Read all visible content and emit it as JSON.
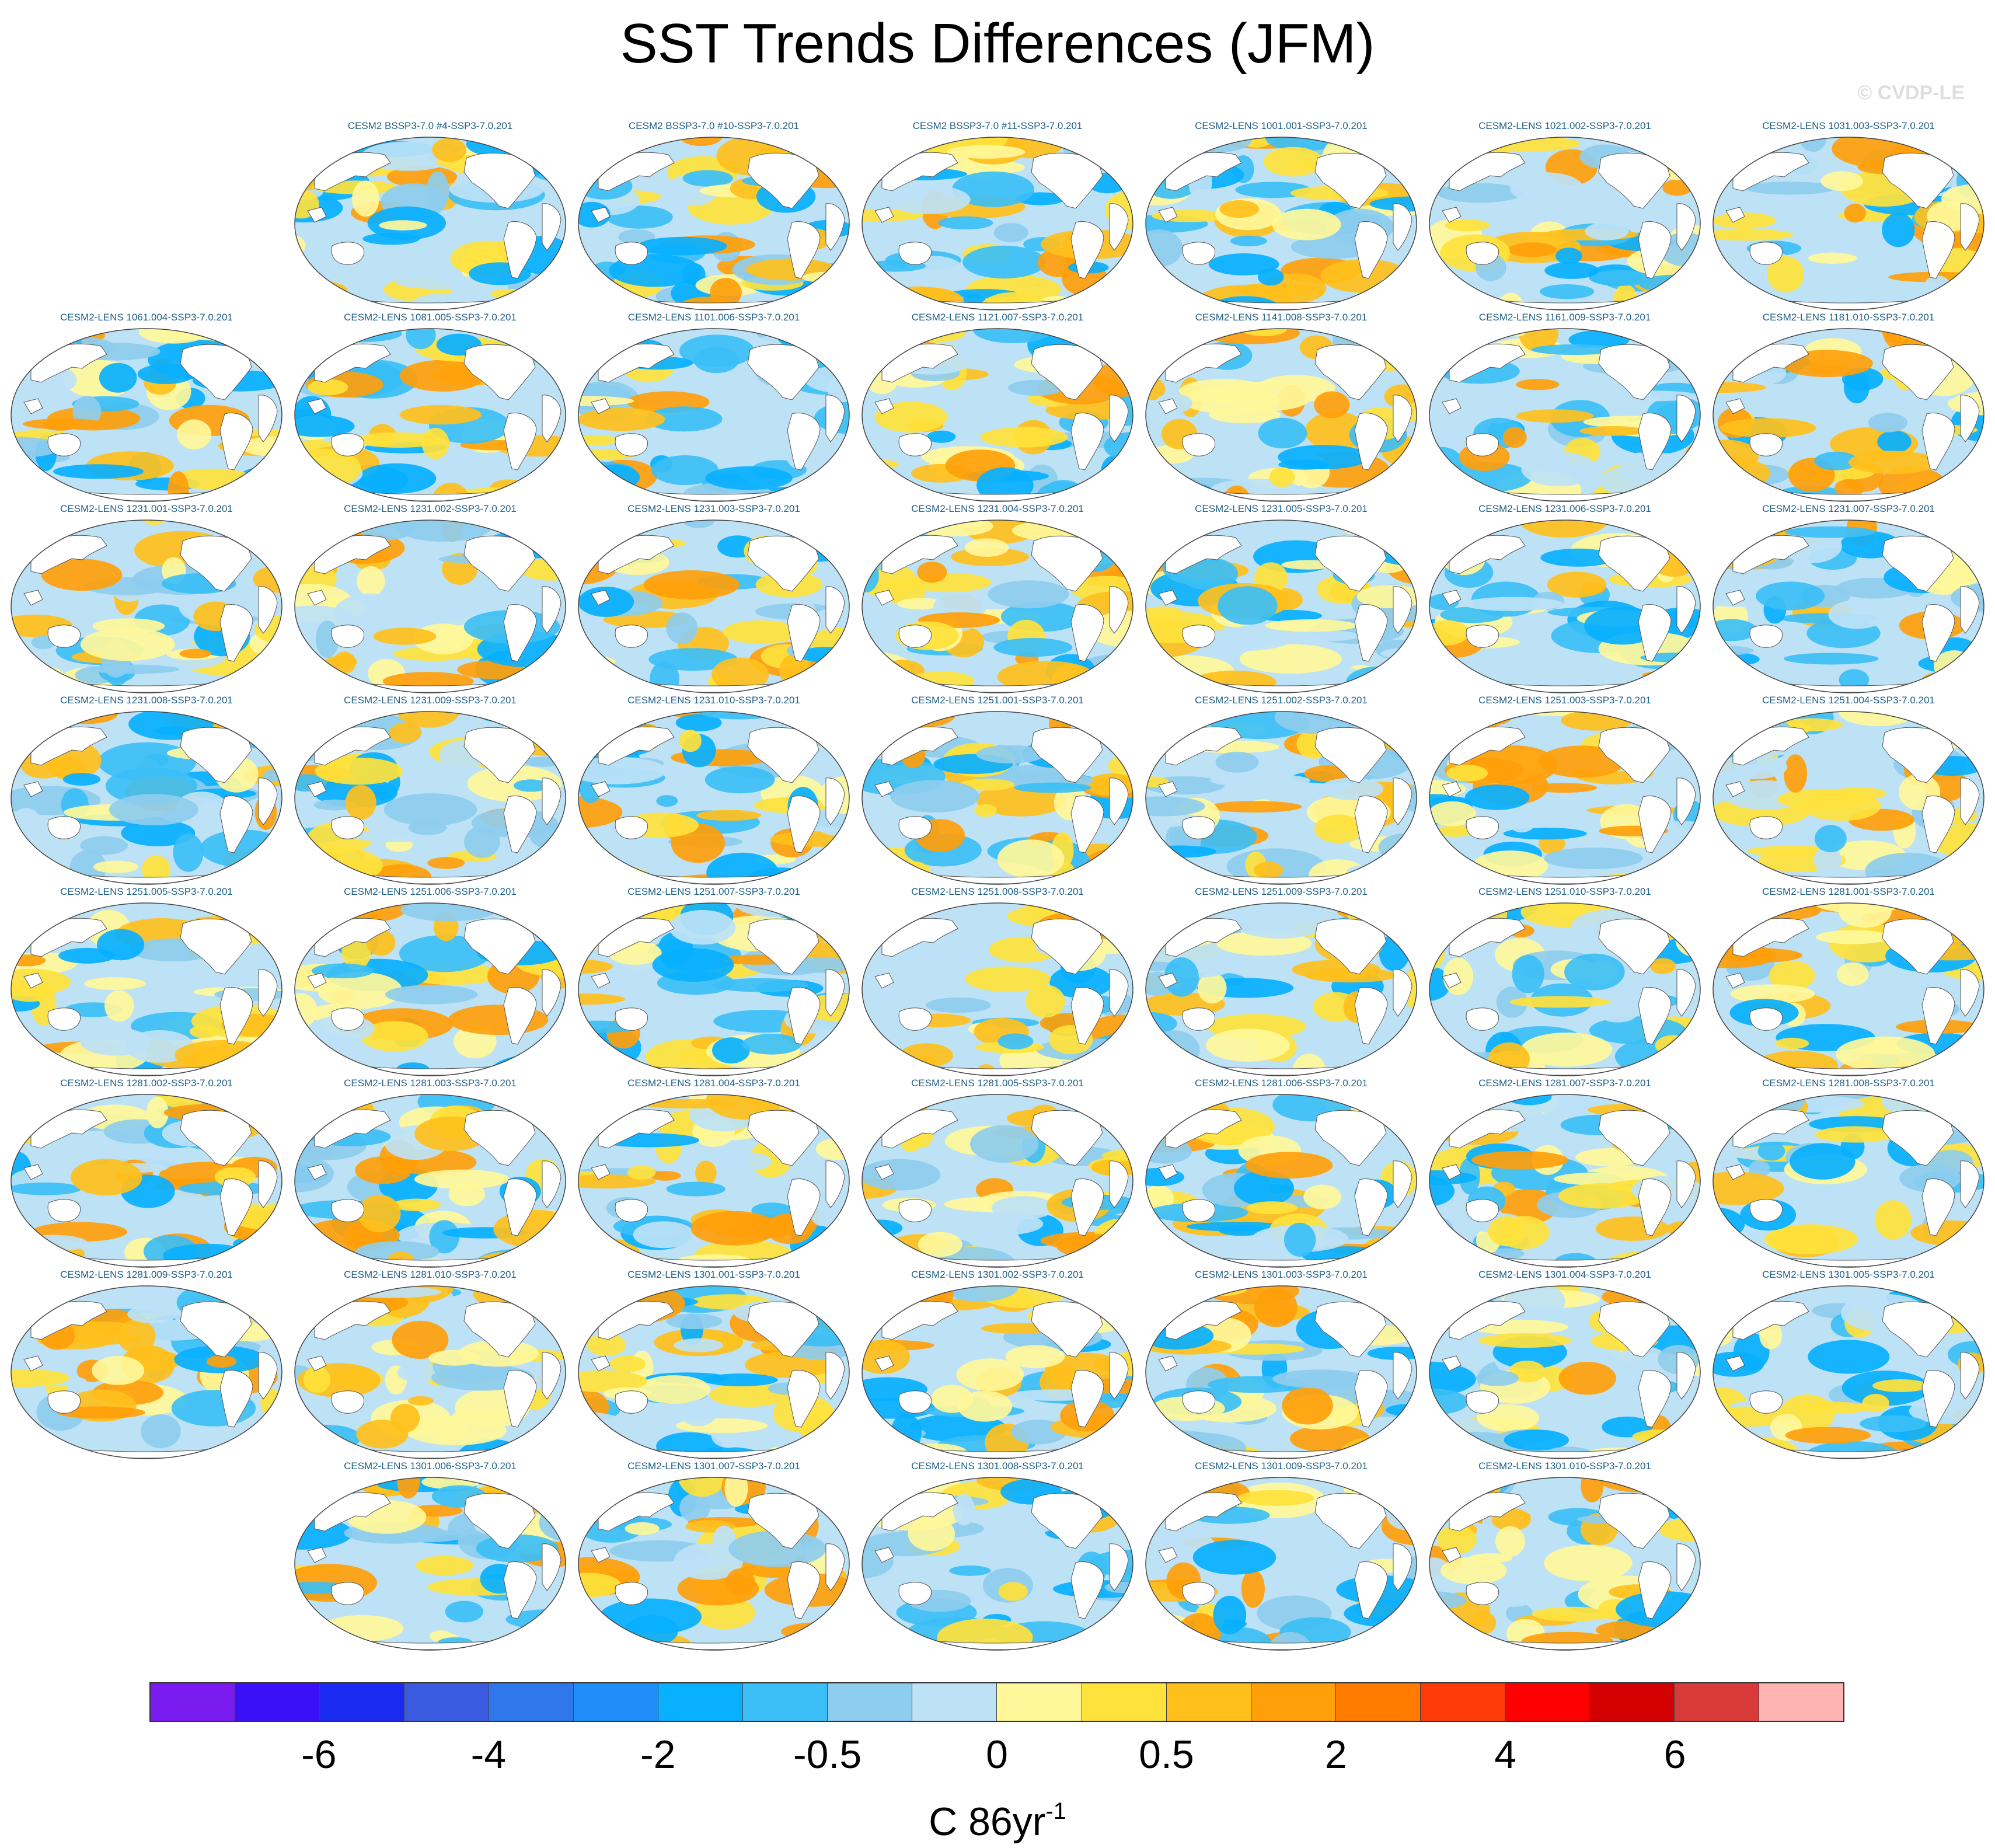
{
  "title": "SST Trends Differences (JFM)",
  "watermark": "© CVDP-LE",
  "panels": [
    {
      "label": "CESM2 BSSP3-7.0 #4-SSP3-7.0.201"
    },
    {
      "label": "CESM2 BSSP3-7.0 #10-SSP3-7.0.201"
    },
    {
      "label": "CESM2 BSSP3-7.0 #11-SSP3-7.0.201"
    },
    {
      "label": "CESM2-LENS 1001.001-SSP3-7.0.201"
    },
    {
      "label": "CESM2-LENS 1021.002-SSP3-7.0.201"
    },
    {
      "label": "CESM2-LENS 1031.003-SSP3-7.0.201"
    },
    {
      "label": "CESM2-LENS 1061.004-SSP3-7.0.201"
    },
    {
      "label": "CESM2-LENS 1081.005-SSP3-7.0.201"
    },
    {
      "label": "CESM2-LENS 1101.006-SSP3-7.0.201"
    },
    {
      "label": "CESM2-LENS 1121.007-SSP3-7.0.201"
    },
    {
      "label": "CESM2-LENS 1141.008-SSP3-7.0.201"
    },
    {
      "label": "CESM2-LENS 1161.009-SSP3-7.0.201"
    },
    {
      "label": "CESM2-LENS 1181.010-SSP3-7.0.201"
    },
    {
      "label": "CESM2-LENS 1231.001-SSP3-7.0.201"
    },
    {
      "label": "CESM2-LENS 1231.002-SSP3-7.0.201"
    },
    {
      "label": "CESM2-LENS 1231.003-SSP3-7.0.201"
    },
    {
      "label": "CESM2-LENS 1231.004-SSP3-7.0.201"
    },
    {
      "label": "CESM2-LENS 1231.005-SSP3-7.0.201"
    },
    {
      "label": "CESM2-LENS 1231.006-SSP3-7.0.201"
    },
    {
      "label": "CESM2-LENS 1231.007-SSP3-7.0.201"
    },
    {
      "label": "CESM2-LENS 1231.008-SSP3-7.0.201"
    },
    {
      "label": "CESM2-LENS 1231.009-SSP3-7.0.201"
    },
    {
      "label": "CESM2-LENS 1231.010-SSP3-7.0.201"
    },
    {
      "label": "CESM2-LENS 1251.001-SSP3-7.0.201"
    },
    {
      "label": "CESM2-LENS 1251.002-SSP3-7.0.201"
    },
    {
      "label": "CESM2-LENS 1251.003-SSP3-7.0.201"
    },
    {
      "label": "CESM2-LENS 1251.004-SSP3-7.0.201"
    },
    {
      "label": "CESM2-LENS 1251.005-SSP3-7.0.201"
    },
    {
      "label": "CESM2-LENS 1251.006-SSP3-7.0.201"
    },
    {
      "label": "CESM2-LENS 1251.007-SSP3-7.0.201"
    },
    {
      "label": "CESM2-LENS 1251.008-SSP3-7.0.201"
    },
    {
      "label": "CESM2-LENS 1251.009-SSP3-7.0.201"
    },
    {
      "label": "CESM2-LENS 1251.010-SSP3-7.0.201"
    },
    {
      "label": "CESM2-LENS 1281.001-SSP3-7.0.201"
    },
    {
      "label": "CESM2-LENS 1281.002-SSP3-7.0.201"
    },
    {
      "label": "CESM2-LENS 1281.003-SSP3-7.0.201"
    },
    {
      "label": "CESM2-LENS 1281.004-SSP3-7.0.201"
    },
    {
      "label": "CESM2-LENS 1281.005-SSP3-7.0.201"
    },
    {
      "label": "CESM2-LENS 1281.006-SSP3-7.0.201"
    },
    {
      "label": "CESM2-LENS 1281.007-SSP3-7.0.201"
    },
    {
      "label": "CESM2-LENS 1281.008-SSP3-7.0.201"
    },
    {
      "label": "CESM2-LENS 1281.009-SSP3-7.0.201"
    },
    {
      "label": "CESM2-LENS 1281.010-SSP3-7.0.201"
    },
    {
      "label": "CESM2-LENS 1301.001-SSP3-7.0.201"
    },
    {
      "label": "CESM2-LENS 1301.002-SSP3-7.0.201"
    },
    {
      "label": "CESM2-LENS 1301.003-SSP3-7.0.201"
    },
    {
      "label": "CESM2-LENS 1301.004-SSP3-7.0.201"
    },
    {
      "label": "CESM2-LENS 1301.005-SSP3-7.0.201"
    },
    {
      "label": "CESM2-LENS 1301.006-SSP3-7.0.201"
    },
    {
      "label": "CESM2-LENS 1301.007-SSP3-7.0.201"
    },
    {
      "label": "CESM2-LENS 1301.008-SSP3-7.0.201"
    },
    {
      "label": "CESM2-LENS 1301.009-SSP3-7.0.201"
    },
    {
      "label": "CESM2-LENS 1301.010-SSP3-7.0.201"
    }
  ],
  "colorbar": {
    "colors": [
      "#7a1cf0",
      "#3a10f8",
      "#1a2af0",
      "#3a5ae0",
      "#2f78ec",
      "#1f8ef8",
      "#08b0ff",
      "#3cbff6",
      "#8ecdee",
      "#bde2f6",
      "#fff79a",
      "#ffe23c",
      "#ffc01c",
      "#ffa00a",
      "#ff7c00",
      "#ff3c08",
      "#ff0000",
      "#d20000",
      "#d83a3a",
      "#ffb4b4"
    ],
    "tick_labels": [
      "-6",
      "-4",
      "-2",
      "-0.5",
      "0",
      "0.5",
      "2",
      "4",
      "6"
    ],
    "units": "C 86yr",
    "units_exponent": "-1"
  }
}
